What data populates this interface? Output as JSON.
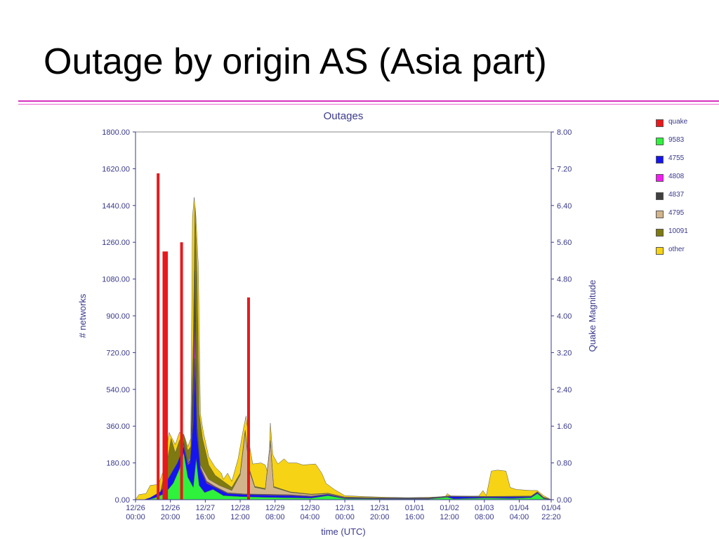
{
  "slide": {
    "title": "Outage by origin AS (Asia part)"
  },
  "chart_data": {
    "type": "area",
    "title": "Outages",
    "xlabel": "time (UTC)",
    "ylabel": "# networks",
    "y2label": "Quake Magnitude",
    "ylim": [
      0,
      1800
    ],
    "y2lim": [
      0,
      8
    ],
    "xlim": [
      0,
      9.93
    ],
    "x_unit": "days since 12/26 00:00",
    "x_ticks": [
      {
        "x": 0.0,
        "label": [
          "12/26",
          "00:00"
        ]
      },
      {
        "x": 0.833,
        "label": [
          "12/26",
          "20:00"
        ]
      },
      {
        "x": 1.667,
        "label": [
          "12/27",
          "16:00"
        ]
      },
      {
        "x": 2.5,
        "label": [
          "12/28",
          "12:00"
        ]
      },
      {
        "x": 3.333,
        "label": [
          "12/29",
          "08:00"
        ]
      },
      {
        "x": 4.167,
        "label": [
          "12/30",
          "04:00"
        ]
      },
      {
        "x": 5.0,
        "label": [
          "12/31",
          "00:00"
        ]
      },
      {
        "x": 5.833,
        "label": [
          "12/31",
          "20:00"
        ]
      },
      {
        "x": 6.667,
        "label": [
          "01/01",
          "16:00"
        ]
      },
      {
        "x": 7.5,
        "label": [
          "01/02",
          "12:00"
        ]
      },
      {
        "x": 8.333,
        "label": [
          "01/03",
          "08:00"
        ]
      },
      {
        "x": 9.167,
        "label": [
          "01/04",
          "04:00"
        ]
      },
      {
        "x": 9.93,
        "label": [
          "01/04",
          "22:20"
        ]
      }
    ],
    "y_ticks": [
      "0.00",
      "180.00",
      "360.00",
      "540.00",
      "720.00",
      "900.00",
      "1080.00",
      "1260.00",
      "1440.00",
      "1620.00",
      "1800.00"
    ],
    "y2_ticks": [
      "0.00",
      "0.80",
      "1.60",
      "2.40",
      "3.20",
      "4.00",
      "4.80",
      "5.60",
      "6.40",
      "7.20",
      "8.00"
    ],
    "legend": [
      {
        "name": "quake",
        "color": "#e8191c"
      },
      {
        "name": "9583",
        "color": "#2ef23c"
      },
      {
        "name": "4755",
        "color": "#1414f0"
      },
      {
        "name": "4808",
        "color": "#f01ef0"
      },
      {
        "name": "4837",
        "color": "#404040"
      },
      {
        "name": "4795",
        "color": "#d2b48c"
      },
      {
        "name": "10091",
        "color": "#7f7a10"
      },
      {
        "name": "other",
        "color": "#f6d315"
      }
    ],
    "quake_bars": [
      {
        "x": 0.54,
        "magnitude": 7.1
      },
      {
        "x": 0.68,
        "magnitude": 5.4
      },
      {
        "x": 0.74,
        "magnitude": 5.4
      },
      {
        "x": 1.1,
        "magnitude": 5.6
      },
      {
        "x": 2.7,
        "magnitude": 4.4
      }
    ],
    "series": [
      {
        "name": "9583",
        "color": "#2ef23c",
        "points": [
          [
            0.3,
            0
          ],
          [
            0.45,
            8
          ],
          [
            0.7,
            30
          ],
          [
            0.9,
            80
          ],
          [
            1.05,
            150
          ],
          [
            1.15,
            230
          ],
          [
            1.25,
            110
          ],
          [
            1.38,
            60
          ],
          [
            1.45,
            200
          ],
          [
            1.52,
            70
          ],
          [
            1.65,
            35
          ],
          [
            1.85,
            50
          ],
          [
            2.1,
            20
          ],
          [
            2.5,
            15
          ],
          [
            3.0,
            12
          ],
          [
            3.5,
            10
          ],
          [
            4.2,
            8
          ],
          [
            4.6,
            20
          ],
          [
            5.0,
            5
          ],
          [
            6.0,
            3
          ],
          [
            7.0,
            3
          ],
          [
            7.45,
            12
          ],
          [
            7.6,
            4
          ],
          [
            8.4,
            8
          ],
          [
            9.0,
            6
          ],
          [
            9.45,
            10
          ],
          [
            9.6,
            30
          ],
          [
            9.75,
            5
          ],
          [
            9.93,
            0
          ]
        ]
      },
      {
        "name": "4755",
        "color": "#1414f0",
        "points": [
          [
            0.2,
            0
          ],
          [
            0.35,
            10
          ],
          [
            0.6,
            40
          ],
          [
            0.8,
            110
          ],
          [
            1.0,
            180
          ],
          [
            1.15,
            260
          ],
          [
            1.25,
            170
          ],
          [
            1.3,
            180
          ],
          [
            1.38,
            380
          ],
          [
            1.42,
            690
          ],
          [
            1.47,
            320
          ],
          [
            1.55,
            150
          ],
          [
            1.7,
            80
          ],
          [
            1.9,
            60
          ],
          [
            2.2,
            30
          ],
          [
            2.6,
            25
          ],
          [
            3.2,
            22
          ],
          [
            3.7,
            20
          ],
          [
            4.2,
            15
          ],
          [
            4.6,
            25
          ],
          [
            5.0,
            8
          ],
          [
            6.0,
            5
          ],
          [
            7.0,
            5
          ],
          [
            7.5,
            15
          ],
          [
            8.4,
            12
          ],
          [
            9.45,
            14
          ],
          [
            9.6,
            35
          ],
          [
            9.75,
            8
          ],
          [
            9.93,
            0
          ]
        ]
      },
      {
        "name": "4808",
        "color": "#f01ef0",
        "points": [
          [
            0.6,
            0
          ],
          [
            0.9,
            110
          ],
          [
            1.05,
            190
          ],
          [
            1.15,
            270
          ],
          [
            1.25,
            175
          ],
          [
            1.32,
            190
          ],
          [
            1.38,
            420
          ],
          [
            1.42,
            870
          ],
          [
            1.47,
            330
          ],
          [
            1.55,
            155
          ],
          [
            1.7,
            85
          ],
          [
            1.9,
            62
          ],
          [
            2.2,
            32
          ],
          [
            2.6,
            26
          ],
          [
            3.2,
            24
          ],
          [
            3.7,
            22
          ],
          [
            4.2,
            17
          ],
          [
            4.6,
            26
          ],
          [
            5.0,
            9
          ],
          [
            6.0,
            6
          ],
          [
            7.0,
            6
          ],
          [
            7.5,
            16
          ],
          [
            8.4,
            13
          ],
          [
            9.45,
            15
          ],
          [
            9.6,
            36
          ],
          [
            9.75,
            9
          ],
          [
            9.93,
            0
          ]
        ]
      },
      {
        "name": "4837",
        "color": "#404040",
        "points": [
          [
            0.6,
            0
          ],
          [
            0.9,
            115
          ],
          [
            1.05,
            195
          ],
          [
            1.15,
            280
          ],
          [
            1.25,
            180
          ],
          [
            1.32,
            200
          ],
          [
            1.38,
            600
          ],
          [
            1.42,
            1100
          ],
          [
            1.47,
            360
          ],
          [
            1.55,
            160
          ],
          [
            1.7,
            90
          ],
          [
            1.9,
            65
          ],
          [
            2.2,
            34
          ],
          [
            2.6,
            28
          ],
          [
            3.2,
            26
          ],
          [
            3.7,
            24
          ],
          [
            4.2,
            18
          ],
          [
            4.6,
            27
          ],
          [
            5.0,
            10
          ],
          [
            6.0,
            7
          ],
          [
            7.0,
            7
          ],
          [
            7.5,
            17
          ],
          [
            8.4,
            14
          ],
          [
            9.45,
            16
          ],
          [
            9.6,
            37
          ],
          [
            9.75,
            10
          ],
          [
            9.93,
            0
          ]
        ]
      },
      {
        "name": "4795",
        "color": "#d2b48c",
        "points": [
          [
            0.6,
            0
          ],
          [
            0.9,
            120
          ],
          [
            1.05,
            200
          ],
          [
            1.15,
            285
          ],
          [
            1.25,
            185
          ],
          [
            1.32,
            210
          ],
          [
            1.38,
            620
          ],
          [
            1.42,
            1120
          ],
          [
            1.47,
            370
          ],
          [
            1.55,
            170
          ],
          [
            1.75,
            100
          ],
          [
            2.0,
            70
          ],
          [
            2.3,
            45
          ],
          [
            2.5,
            120
          ],
          [
            2.62,
            330
          ],
          [
            2.72,
            140
          ],
          [
            2.85,
            60
          ],
          [
            3.1,
            50
          ],
          [
            3.22,
            280
          ],
          [
            3.3,
            60
          ],
          [
            3.7,
            35
          ],
          [
            4.2,
            25
          ],
          [
            4.6,
            30
          ],
          [
            5.0,
            12
          ],
          [
            6.0,
            8
          ],
          [
            7.0,
            8
          ],
          [
            7.5,
            18
          ],
          [
            8.4,
            15
          ],
          [
            9.45,
            17
          ],
          [
            9.6,
            38
          ],
          [
            9.75,
            11
          ],
          [
            9.93,
            0
          ]
        ]
      },
      {
        "name": "10091",
        "color": "#7f7a10",
        "points": [
          [
            0.55,
            0
          ],
          [
            0.75,
            180
          ],
          [
            0.85,
            300
          ],
          [
            0.95,
            230
          ],
          [
            1.05,
            290
          ],
          [
            1.15,
            320
          ],
          [
            1.25,
            240
          ],
          [
            1.32,
            260
          ],
          [
            1.38,
            800
          ],
          [
            1.42,
            1440
          ],
          [
            1.47,
            1100
          ],
          [
            1.52,
            420
          ],
          [
            1.6,
            300
          ],
          [
            1.75,
            170
          ],
          [
            1.9,
            120
          ],
          [
            2.1,
            90
          ],
          [
            2.3,
            60
          ],
          [
            2.5,
            130
          ],
          [
            2.62,
            340
          ],
          [
            2.72,
            150
          ],
          [
            2.85,
            65
          ],
          [
            3.1,
            55
          ],
          [
            3.22,
            290
          ],
          [
            3.3,
            65
          ],
          [
            3.7,
            38
          ],
          [
            4.2,
            27
          ],
          [
            4.6,
            32
          ],
          [
            5.0,
            13
          ],
          [
            6.0,
            9
          ],
          [
            7.0,
            9
          ],
          [
            7.5,
            19
          ],
          [
            8.4,
            16
          ],
          [
            9.45,
            18
          ],
          [
            9.6,
            39
          ],
          [
            9.75,
            12
          ],
          [
            9.93,
            0
          ]
        ]
      },
      {
        "name": "other",
        "color": "#f6d315",
        "points": [
          [
            0.0,
            0
          ],
          [
            0.08,
            25
          ],
          [
            0.25,
            30
          ],
          [
            0.35,
            70
          ],
          [
            0.55,
            75
          ],
          [
            0.68,
            150
          ],
          [
            0.8,
            330
          ],
          [
            0.95,
            270
          ],
          [
            1.05,
            330
          ],
          [
            1.15,
            320
          ],
          [
            1.25,
            260
          ],
          [
            1.32,
            300
          ],
          [
            1.36,
            1380
          ],
          [
            1.4,
            1480
          ],
          [
            1.44,
            1400
          ],
          [
            1.5,
            1150
          ],
          [
            1.55,
            420
          ],
          [
            1.62,
            330
          ],
          [
            1.75,
            210
          ],
          [
            1.9,
            160
          ],
          [
            2.05,
            130
          ],
          [
            2.1,
            100
          ],
          [
            2.2,
            130
          ],
          [
            2.3,
            90
          ],
          [
            2.45,
            200
          ],
          [
            2.58,
            350
          ],
          [
            2.64,
            410
          ],
          [
            2.72,
            270
          ],
          [
            2.8,
            175
          ],
          [
            3.0,
            180
          ],
          [
            3.1,
            170
          ],
          [
            3.18,
            120
          ],
          [
            3.22,
            375
          ],
          [
            3.28,
            220
          ],
          [
            3.4,
            175
          ],
          [
            3.55,
            200
          ],
          [
            3.65,
            180
          ],
          [
            3.85,
            180
          ],
          [
            4.0,
            170
          ],
          [
            4.3,
            175
          ],
          [
            4.45,
            130
          ],
          [
            4.55,
            80
          ],
          [
            4.75,
            50
          ],
          [
            5.0,
            20
          ],
          [
            5.5,
            15
          ],
          [
            6.0,
            12
          ],
          [
            6.5,
            10
          ],
          [
            7.0,
            12
          ],
          [
            7.4,
            15
          ],
          [
            7.45,
            30
          ],
          [
            7.55,
            15
          ],
          [
            8.2,
            18
          ],
          [
            8.3,
            45
          ],
          [
            8.38,
            20
          ],
          [
            8.5,
            140
          ],
          [
            8.65,
            145
          ],
          [
            8.85,
            140
          ],
          [
            8.95,
            60
          ],
          [
            9.1,
            50
          ],
          [
            9.45,
            45
          ],
          [
            9.6,
            45
          ],
          [
            9.75,
            20
          ],
          [
            9.93,
            0
          ]
        ]
      }
    ]
  }
}
